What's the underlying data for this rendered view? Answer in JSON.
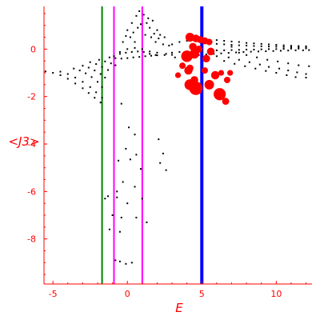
{
  "chart_data": {
    "type": "scatter",
    "title": "",
    "xlabel": "E",
    "ylabel": "<J3>",
    "xlim": [
      -5.6,
      12.4
    ],
    "ylim": [
      -9.9,
      1.8
    ],
    "x_ticks": [
      -5,
      0,
      5,
      10
    ],
    "x_tick_labels": [
      "-5",
      "0",
      "5",
      "10"
    ],
    "y_ticks": [
      0,
      -2,
      -4,
      -6,
      -8
    ],
    "y_tick_labels": [
      "0",
      "-2",
      "-4",
      "-6",
      "-8"
    ],
    "grid": false,
    "legend": "none",
    "axis_color": "#ff0000",
    "vertical_lines": [
      {
        "x": -1.7,
        "color": "#008000"
      },
      {
        "x": -0.9,
        "color": "#ff00ff"
      },
      {
        "x": 1.0,
        "color": "#ff00ff"
      },
      {
        "x": 5.0,
        "color": "#0000ff",
        "emphasis": "thick"
      }
    ],
    "series": [
      {
        "color": "#000000",
        "points": [
          [
            -5.5,
            -0.94
          ],
          [
            -5.0,
            -1.0
          ],
          [
            -4.5,
            -1.1
          ],
          [
            -4.0,
            -1.25
          ],
          [
            -3.5,
            -1.45
          ],
          [
            -3.0,
            -1.65
          ],
          [
            -2.6,
            -1.85
          ],
          [
            -2.2,
            -2.05
          ],
          [
            -1.8,
            -2.25
          ],
          [
            -4.5,
            -0.95
          ],
          [
            -4.0,
            -1.05
          ],
          [
            -3.5,
            -1.2
          ],
          [
            -3.0,
            -1.38
          ],
          [
            -2.5,
            -1.6
          ],
          [
            -2.1,
            -1.82
          ],
          [
            -1.7,
            -2.05
          ],
          [
            -3.6,
            -0.82
          ],
          [
            -3.2,
            -0.9
          ],
          [
            -2.8,
            -1.02
          ],
          [
            -2.4,
            -1.18
          ],
          [
            -2.0,
            -1.38
          ],
          [
            -1.7,
            -1.6
          ],
          [
            -3.0,
            -0.7
          ],
          [
            -2.6,
            -0.78
          ],
          [
            -2.2,
            -0.9
          ],
          [
            -1.8,
            -1.05
          ],
          [
            -1.5,
            -1.2
          ],
          [
            -2.5,
            -0.55
          ],
          [
            -2.1,
            -0.63
          ],
          [
            -1.7,
            -0.75
          ],
          [
            -1.3,
            -0.88
          ],
          [
            -1.9,
            -0.45
          ],
          [
            -1.5,
            -0.52
          ],
          [
            -1.1,
            -0.6
          ],
          [
            -0.8,
            -0.68
          ],
          [
            -1.2,
            -0.35
          ],
          [
            -0.8,
            -0.38
          ],
          [
            -0.4,
            -0.4
          ],
          [
            0.0,
            -0.38
          ],
          [
            0.4,
            -0.35
          ],
          [
            0.8,
            -0.33
          ],
          [
            1.2,
            -0.3
          ],
          [
            1.6,
            -0.28
          ],
          [
            2.0,
            -0.26
          ],
          [
            2.5,
            -0.25
          ],
          [
            3.0,
            -0.24
          ],
          [
            -0.9,
            -0.3
          ],
          [
            -0.5,
            -0.2
          ],
          [
            -0.1,
            -0.15
          ],
          [
            0.3,
            -0.12
          ],
          [
            0.7,
            -0.1
          ],
          [
            1.1,
            -0.12
          ],
          [
            1.5,
            -0.2
          ],
          [
            1.9,
            -0.25
          ],
          [
            -0.5,
            -0.12
          ],
          [
            0.0,
            0.0
          ],
          [
            0.5,
            0.05
          ],
          [
            1.0,
            0.0
          ],
          [
            1.5,
            -0.1
          ],
          [
            2.0,
            -0.15
          ],
          [
            2.6,
            -0.2
          ],
          [
            3.0,
            -0.15
          ],
          [
            3.5,
            -0.12
          ],
          [
            4.0,
            -0.1
          ],
          [
            4.5,
            -0.08
          ],
          [
            5.0,
            -0.07
          ],
          [
            5.5,
            -0.06
          ],
          [
            6.0,
            -0.05
          ],
          [
            6.5,
            -0.05
          ],
          [
            7.0,
            -0.04
          ],
          [
            7.5,
            -0.03
          ],
          [
            8.0,
            -0.02
          ],
          [
            8.5,
            -0.02
          ],
          [
            9.0,
            -0.01
          ],
          [
            9.5,
            0.0
          ],
          [
            10.0,
            0.0
          ],
          [
            10.5,
            0.01
          ],
          [
            11.0,
            0.02
          ],
          [
            11.5,
            0.02
          ],
          [
            12.0,
            0.03
          ],
          [
            3.0,
            0.2
          ],
          [
            3.5,
            0.3
          ],
          [
            4.0,
            0.35
          ],
          [
            4.5,
            0.38
          ],
          [
            5.0,
            0.4
          ],
          [
            5.5,
            0.4
          ],
          [
            6.0,
            0.38
          ],
          [
            6.5,
            0.35
          ],
          [
            7.0,
            0.32
          ],
          [
            7.5,
            0.3
          ],
          [
            8.0,
            0.26
          ],
          [
            8.5,
            0.24
          ],
          [
            9.0,
            0.22
          ],
          [
            9.5,
            0.2
          ],
          [
            10.0,
            0.18
          ],
          [
            10.5,
            0.16
          ],
          [
            11.0,
            0.14
          ],
          [
            11.5,
            0.13
          ],
          [
            12.0,
            0.12
          ],
          [
            3.2,
            -0.35
          ],
          [
            3.8,
            -0.3
          ],
          [
            4.3,
            -0.28
          ],
          [
            4.8,
            -0.25
          ],
          [
            5.3,
            -0.22
          ],
          [
            5.8,
            -0.2
          ],
          [
            6.3,
            -0.18
          ],
          [
            6.8,
            -0.16
          ],
          [
            7.3,
            -0.14
          ],
          [
            7.8,
            -0.12
          ],
          [
            8.3,
            -0.11
          ],
          [
            8.8,
            -0.1
          ],
          [
            9.3,
            -0.09
          ],
          [
            9.8,
            -0.08
          ],
          [
            10.3,
            -0.07
          ],
          [
            10.8,
            -0.06
          ],
          [
            11.3,
            -0.05
          ],
          [
            11.8,
            -0.05
          ],
          [
            12.2,
            -0.04
          ],
          [
            5.5,
            0.25
          ],
          [
            6.0,
            0.22
          ],
          [
            6.5,
            0.2
          ],
          [
            7.0,
            0.18
          ],
          [
            7.5,
            0.16
          ],
          [
            8.0,
            0.15
          ],
          [
            8.5,
            0.13
          ],
          [
            9.0,
            0.12
          ],
          [
            9.5,
            0.11
          ],
          [
            10.0,
            0.1
          ],
          [
            10.5,
            0.09
          ],
          [
            11.0,
            0.08
          ],
          [
            11.5,
            0.08
          ],
          [
            12.0,
            0.07
          ],
          [
            6.0,
            -0.3
          ],
          [
            6.8,
            -0.35
          ],
          [
            7.5,
            -0.45
          ],
          [
            8.2,
            -0.55
          ],
          [
            8.9,
            -0.65
          ],
          [
            9.5,
            -0.75
          ],
          [
            10.2,
            -0.82
          ],
          [
            10.8,
            -0.9
          ],
          [
            11.4,
            -0.98
          ],
          [
            12.0,
            -1.05
          ],
          [
            6.5,
            -0.5
          ],
          [
            7.2,
            -0.62
          ],
          [
            7.9,
            -0.72
          ],
          [
            8.6,
            -0.82
          ],
          [
            9.3,
            -0.92
          ],
          [
            10.0,
            -1.0
          ],
          [
            10.7,
            -1.1
          ],
          [
            11.3,
            -1.18
          ],
          [
            12.0,
            -1.2
          ],
          [
            7.0,
            0.1
          ],
          [
            7.5,
            -0.15
          ],
          [
            8.0,
            -0.25
          ],
          [
            8.7,
            -0.35
          ],
          [
            9.4,
            -0.45
          ],
          [
            10.1,
            -0.52
          ],
          [
            10.8,
            -0.6
          ],
          [
            11.5,
            -0.68
          ],
          [
            12.2,
            -0.72
          ],
          [
            0.0,
            0.8
          ],
          [
            0.3,
            1.1
          ],
          [
            0.6,
            1.4
          ],
          [
            0.8,
            1.6
          ],
          [
            0.9,
            1.05
          ],
          [
            1.1,
            1.45
          ],
          [
            1.3,
            1.1
          ],
          [
            1.5,
            0.9
          ],
          [
            1.7,
            1.2
          ],
          [
            2.0,
            0.8
          ],
          [
            2.2,
            0.6
          ],
          [
            2.5,
            0.5
          ],
          [
            0.2,
            0.5
          ],
          [
            0.5,
            0.3
          ],
          [
            0.7,
            0.9
          ],
          [
            1.2,
            0.6
          ],
          [
            1.6,
            0.5
          ],
          [
            1.9,
            0.3
          ],
          [
            2.4,
            0.2
          ],
          [
            2.8,
            0.15
          ],
          [
            -0.3,
            0.3
          ],
          [
            -0.1,
            0.55
          ],
          [
            0.4,
            0.7
          ],
          [
            1.4,
            1.3
          ],
          [
            1.8,
            0.65
          ],
          [
            2.1,
            0.45
          ],
          [
            -0.4,
            -2.3
          ],
          [
            0.1,
            -3.3
          ],
          [
            0.5,
            -3.6
          ],
          [
            -0.1,
            -4.2
          ],
          [
            0.6,
            -4.45
          ],
          [
            0.2,
            -4.65
          ],
          [
            -0.6,
            -4.7
          ],
          [
            0.9,
            -5.05
          ],
          [
            -0.3,
            -5.6
          ],
          [
            0.5,
            -5.8
          ],
          [
            -0.7,
            -6.0
          ],
          [
            2.1,
            -3.8
          ],
          [
            2.4,
            -4.4
          ],
          [
            2.2,
            -4.8
          ],
          [
            2.6,
            -5.1
          ],
          [
            -1.5,
            -6.3
          ],
          [
            -1.3,
            -6.2
          ],
          [
            -0.7,
            -6.25
          ],
          [
            0.0,
            -6.5
          ],
          [
            1.0,
            -6.3
          ],
          [
            -1.0,
            -7.0
          ],
          [
            -0.4,
            -7.1
          ],
          [
            0.6,
            -7.1
          ],
          [
            1.3,
            -7.3
          ],
          [
            -1.2,
            -7.6
          ],
          [
            -0.5,
            -7.7
          ],
          [
            -0.8,
            -8.9
          ],
          [
            -0.5,
            -8.95
          ],
          [
            -0.1,
            -9.05
          ],
          [
            0.3,
            -9.0
          ]
        ]
      },
      {
        "color": "#ff0000",
        "points": [
          [
            4.2,
            0.5,
            0.9
          ],
          [
            4.6,
            0.45,
            0.7
          ],
          [
            4.9,
            0.4,
            0.6
          ],
          [
            5.2,
            0.35,
            0.6
          ],
          [
            5.5,
            0.3,
            0.5
          ],
          [
            4.4,
            0.1,
            0.7
          ],
          [
            4.8,
            0.0,
            0.6
          ],
          [
            4.0,
            -0.3,
            1.3
          ],
          [
            4.5,
            -0.2,
            1.0
          ],
          [
            5.6,
            -0.1,
            0.7
          ],
          [
            3.7,
            -0.7,
            0.5
          ],
          [
            4.2,
            -0.8,
            0.6
          ],
          [
            5.3,
            -0.4,
            0.7
          ],
          [
            4.1,
            -0.9,
            0.8
          ],
          [
            4.5,
            -1.3,
            0.7
          ],
          [
            4.2,
            -1.5,
            1.2
          ],
          [
            4.6,
            -1.65,
            1.6
          ],
          [
            5.5,
            -1.5,
            1.0
          ],
          [
            5.9,
            -1.1,
            0.8
          ],
          [
            6.2,
            -1.9,
            1.4
          ],
          [
            6.6,
            -2.2,
            0.6
          ],
          [
            5.2,
            -0.9,
            0.5
          ],
          [
            3.4,
            -1.1,
            0.4
          ],
          [
            6.3,
            -1.0,
            0.4
          ],
          [
            6.9,
            -1.0,
            0.4
          ],
          [
            6.7,
            -1.3,
            0.5
          ]
        ]
      }
    ]
  }
}
